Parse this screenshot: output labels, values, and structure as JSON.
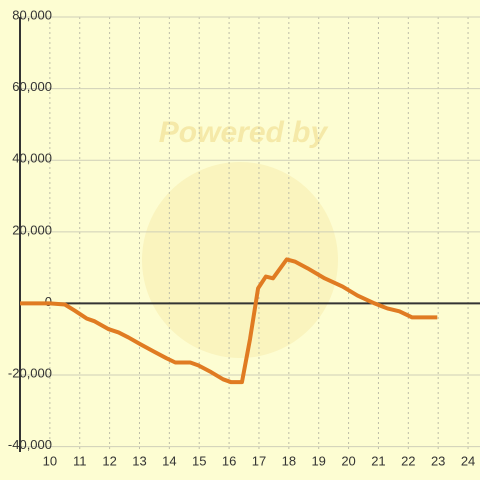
{
  "chart_data": {
    "type": "line",
    "watermark": "Powered by",
    "x": [
      9,
      10,
      10.5,
      10.83,
      11.23,
      11.5,
      11.97,
      12.3,
      12.63,
      13.03,
      13.47,
      13.9,
      14.2,
      14.7,
      14.97,
      15.4,
      15.8,
      16.07,
      16.43,
      16.7,
      16.97,
      17.23,
      17.47,
      17.93,
      18.2,
      18.63,
      19.2,
      19.8,
      20.3,
      20.87,
      21.3,
      21.7,
      22.13,
      22.47,
      22.97
    ],
    "series": [
      {
        "color": "#e07b22",
        "values": [
          0,
          0,
          -300,
          -2000,
          -4200,
          -5000,
          -7200,
          -8100,
          -9500,
          -11400,
          -13400,
          -15300,
          -16500,
          -16500,
          -17300,
          -19200,
          -21200,
          -22000,
          -22000,
          -10000,
          4200,
          7500,
          7000,
          12300,
          11700,
          9800,
          7000,
          4700,
          2200,
          0,
          -1400,
          -2200,
          -3900,
          -3900,
          -3900
        ]
      }
    ],
    "xlim": [
      9,
      24.4
    ],
    "xticks": [
      10,
      11,
      12,
      13,
      14,
      15,
      16,
      17,
      18,
      19,
      20,
      21,
      22,
      23,
      24
    ],
    "ylim": [
      -41500,
      80000
    ],
    "yticks": [
      {
        "value": -40000,
        "label": "-40,000"
      },
      {
        "value": -20000,
        "label": "-20,000"
      },
      0,
      {
        "value": 20000,
        "label": "20,000"
      },
      {
        "value": 40000,
        "label": "40,000"
      },
      {
        "value": 60000,
        "label": "60,000"
      },
      {
        "value": 80000,
        "label": "80,000"
      }
    ],
    "grid": true
  }
}
